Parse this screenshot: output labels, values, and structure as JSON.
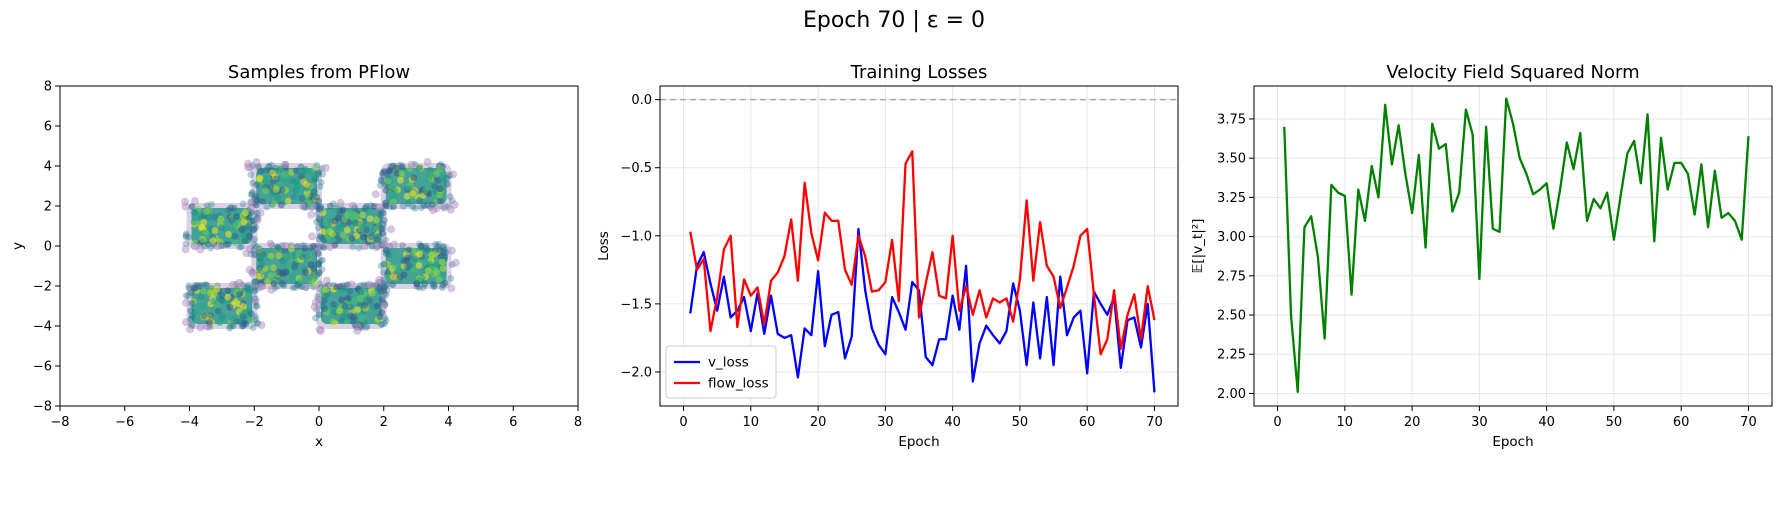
{
  "suptitle": "Epoch 70 | ε = 0",
  "colors": {
    "v_loss": "#0000ff",
    "flow_loss": "#ff0000",
    "norm": "#008000",
    "zero_line": "#aaaaaa",
    "grid": "#e6e6e6",
    "scatter_edge": "#5a2d82"
  },
  "chart_data": [
    {
      "type": "scatter",
      "title": "Samples from PFlow",
      "xlabel": "x",
      "ylabel": "y",
      "xlim": [
        -8,
        8
      ],
      "ylim": [
        -8,
        8
      ],
      "xticks": [
        -8,
        -6,
        -4,
        -2,
        0,
        2,
        4,
        6,
        8
      ],
      "yticks": [
        -8,
        -6,
        -4,
        -2,
        0,
        2,
        4,
        6,
        8
      ],
      "grid": false,
      "clusters": [
        {
          "x": [
            -4,
            -2
          ],
          "y": [
            0,
            2
          ]
        },
        {
          "x": [
            -2,
            0
          ],
          "y": [
            2,
            4
          ]
        },
        {
          "x": [
            0,
            2
          ],
          "y": [
            0,
            2
          ]
        },
        {
          "x": [
            2,
            4
          ],
          "y": [
            2,
            4
          ]
        },
        {
          "x": [
            -2,
            0
          ],
          "y": [
            -2,
            0
          ]
        },
        {
          "x": [
            2,
            4
          ],
          "y": [
            -2,
            0
          ]
        },
        {
          "x": [
            -4,
            -2
          ],
          "y": [
            -4,
            -2
          ]
        },
        {
          "x": [
            0,
            2
          ],
          "y": [
            -4,
            -2
          ]
        }
      ]
    },
    {
      "type": "line",
      "title": "Training Losses",
      "xlabel": "Epoch",
      "ylabel": "Loss",
      "xlim": [
        -3.5,
        73.5
      ],
      "ylim": [
        -2.25,
        0.1
      ],
      "xticks": [
        0,
        10,
        20,
        30,
        40,
        50,
        60,
        70
      ],
      "yticks": [
        -2.0,
        -1.5,
        -1.0,
        -0.5,
        0.0
      ],
      "ytick_labels": [
        "−2.0",
        "−1.5",
        "−1.0",
        "−0.5",
        "0.0"
      ],
      "grid": true,
      "legend": "lower-left",
      "hline": 0.0,
      "series": [
        {
          "name": "v_loss",
          "x": [
            1,
            2,
            3,
            4,
            5,
            6,
            7,
            8,
            9,
            10,
            11,
            12,
            13,
            14,
            15,
            16,
            17,
            18,
            19,
            20,
            21,
            22,
            23,
            24,
            25,
            26,
            27,
            28,
            29,
            30,
            31,
            32,
            33,
            34,
            35,
            36,
            37,
            38,
            39,
            40,
            41,
            42,
            43,
            44,
            45,
            46,
            47,
            48,
            49,
            50,
            51,
            52,
            53,
            54,
            55,
            56,
            57,
            58,
            59,
            60,
            61,
            62,
            63,
            64,
            65,
            66,
            67,
            68,
            69,
            70
          ],
          "values": [
            -1.57,
            -1.22,
            -1.12,
            -1.35,
            -1.55,
            -1.3,
            -1.6,
            -1.55,
            -1.45,
            -1.7,
            -1.42,
            -1.72,
            -1.44,
            -1.72,
            -1.75,
            -1.73,
            -2.04,
            -1.68,
            -1.73,
            -1.26,
            -1.81,
            -1.58,
            -1.56,
            -1.9,
            -1.74,
            -0.95,
            -1.4,
            -1.68,
            -1.8,
            -1.87,
            -1.45,
            -1.56,
            -1.69,
            -1.34,
            -1.4,
            -1.89,
            -1.95,
            -1.76,
            -1.76,
            -1.44,
            -1.69,
            -1.22,
            -2.07,
            -1.79,
            -1.66,
            -1.73,
            -1.79,
            -1.7,
            -1.35,
            -1.55,
            -1.95,
            -1.49,
            -1.9,
            -1.45,
            -1.95,
            -1.3,
            -1.73,
            -1.6,
            -1.55,
            -2.01,
            -1.41,
            -1.5,
            -1.58,
            -1.45,
            -1.97,
            -1.62,
            -1.6,
            -1.82,
            -1.5,
            -2.15
          ]
        },
        {
          "name": "flow_loss",
          "x": [
            1,
            2,
            3,
            4,
            5,
            6,
            7,
            8,
            9,
            10,
            11,
            12,
            13,
            14,
            15,
            16,
            17,
            18,
            19,
            20,
            21,
            22,
            23,
            24,
            25,
            26,
            27,
            28,
            29,
            30,
            31,
            32,
            33,
            34,
            35,
            36,
            37,
            38,
            39,
            40,
            41,
            42,
            43,
            44,
            45,
            46,
            47,
            48,
            49,
            50,
            51,
            52,
            53,
            54,
            55,
            56,
            57,
            58,
            59,
            60,
            61,
            62,
            63,
            64,
            65,
            66,
            67,
            68,
            69,
            70
          ],
          "values": [
            -0.97,
            -1.25,
            -1.17,
            -1.7,
            -1.45,
            -1.1,
            -1.0,
            -1.67,
            -1.32,
            -1.44,
            -1.38,
            -1.65,
            -1.33,
            -1.27,
            -1.15,
            -0.88,
            -1.33,
            -0.61,
            -0.98,
            -1.18,
            -0.83,
            -0.89,
            -0.89,
            -1.25,
            -1.36,
            -1.0,
            -1.15,
            -1.41,
            -1.4,
            -1.34,
            -1.03,
            -1.48,
            -0.47,
            -0.38,
            -1.6,
            -1.35,
            -1.12,
            -1.44,
            -1.46,
            -1.0,
            -1.55,
            -1.37,
            -1.58,
            -1.4,
            -1.6,
            -1.46,
            -1.49,
            -1.46,
            -1.63,
            -1.32,
            -0.74,
            -1.33,
            -0.9,
            -1.22,
            -1.3,
            -1.53,
            -1.38,
            -1.22,
            -1.0,
            -0.95,
            -1.43,
            -1.87,
            -1.76,
            -1.4,
            -1.83,
            -1.58,
            -1.43,
            -1.76,
            -1.37,
            -1.62
          ]
        }
      ]
    },
    {
      "type": "line",
      "title": "Velocity Field Squared Norm",
      "xlabel": "Epoch",
      "ylabel": "𝔼[|v_t|²]",
      "xlim": [
        -3.5,
        73.5
      ],
      "ylim": [
        1.92,
        3.96
      ],
      "xticks": [
        0,
        10,
        20,
        30,
        40,
        50,
        60,
        70
      ],
      "yticks": [
        2.0,
        2.25,
        2.5,
        2.75,
        3.0,
        3.25,
        3.5,
        3.75
      ],
      "ytick_labels": [
        "2.00",
        "2.25",
        "2.50",
        "2.75",
        "3.00",
        "3.25",
        "3.50",
        "3.75"
      ],
      "grid": true,
      "series": [
        {
          "x": [
            1,
            2,
            3,
            4,
            5,
            6,
            7,
            8,
            9,
            10,
            11,
            12,
            13,
            14,
            15,
            16,
            17,
            18,
            19,
            20,
            21,
            22,
            23,
            24,
            25,
            26,
            27,
            28,
            29,
            30,
            31,
            32,
            33,
            34,
            35,
            36,
            37,
            38,
            39,
            40,
            41,
            42,
            43,
            44,
            45,
            46,
            47,
            48,
            49,
            50,
            51,
            52,
            53,
            54,
            55,
            56,
            57,
            58,
            59,
            60,
            61,
            62,
            63,
            64,
            65,
            66,
            67,
            68,
            69,
            70
          ],
          "values": [
            3.7,
            2.5,
            2.01,
            3.06,
            3.13,
            2.87,
            2.35,
            3.33,
            3.28,
            3.26,
            2.63,
            3.3,
            3.1,
            3.45,
            3.25,
            3.84,
            3.46,
            3.71,
            3.4,
            3.15,
            3.52,
            2.93,
            3.72,
            3.56,
            3.59,
            3.16,
            3.28,
            3.81,
            3.65,
            2.73,
            3.7,
            3.05,
            3.03,
            3.88,
            3.72,
            3.5,
            3.4,
            3.27,
            3.3,
            3.34,
            3.05,
            3.3,
            3.6,
            3.43,
            3.66,
            3.1,
            3.24,
            3.18,
            3.28,
            2.98,
            3.26,
            3.53,
            3.61,
            3.34,
            3.78,
            2.97,
            3.63,
            3.3,
            3.47,
            3.47,
            3.4,
            3.14,
            3.46,
            3.06,
            3.42,
            3.12,
            3.15,
            3.1,
            2.98,
            3.64
          ]
        }
      ]
    }
  ]
}
